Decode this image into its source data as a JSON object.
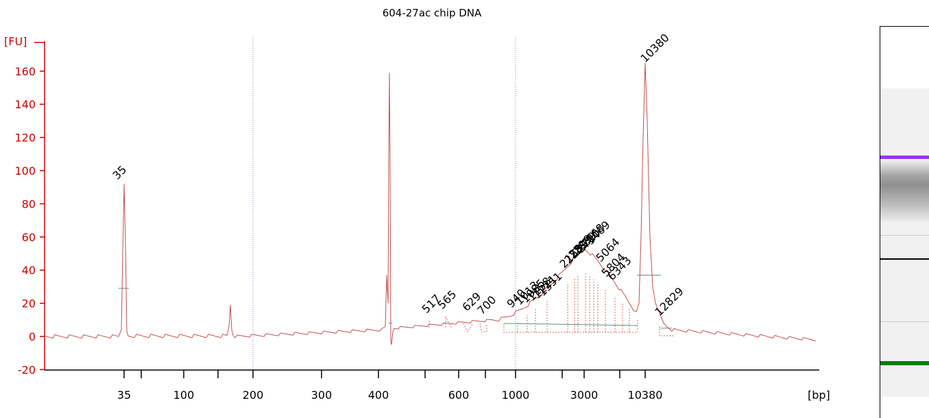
{
  "chart_data": {
    "type": "line",
    "title": "604-27ac chip DNA",
    "ylabel": "[FU]",
    "xlabel": "[bp]",
    "ylim": [
      -20,
      170
    ],
    "yticks": [
      -20,
      0,
      20,
      40,
      60,
      80,
      100,
      120,
      140,
      160
    ],
    "xtick_labels": [
      "35",
      "100",
      "200",
      "300",
      "400",
      "600",
      "1000",
      "3000",
      "10380"
    ],
    "grid": false,
    "series_color": "#c0504d",
    "lower_marker": {
      "label": "35",
      "height_fu": 92,
      "color": "#008000"
    },
    "upper_marker": {
      "label": "10380",
      "height_fu": 165,
      "color": "#9b30ff"
    },
    "other_peaks_fu": [
      19,
      159,
      37
    ],
    "peak_labels": [
      "517",
      "565",
      "629",
      "700",
      "940",
      "1013",
      "1085",
      "1158",
      "1221",
      "1351",
      "2158",
      "2239",
      "2519",
      "2639",
      "2710",
      "2968",
      "3469",
      "5064",
      "5804",
      "6343",
      "12829"
    ],
    "smear_max_fu": 55
  },
  "gel": {
    "lower_marker_color": "#008000",
    "upper_marker_color": "#9b30ff",
    "band_color": "#000000"
  }
}
